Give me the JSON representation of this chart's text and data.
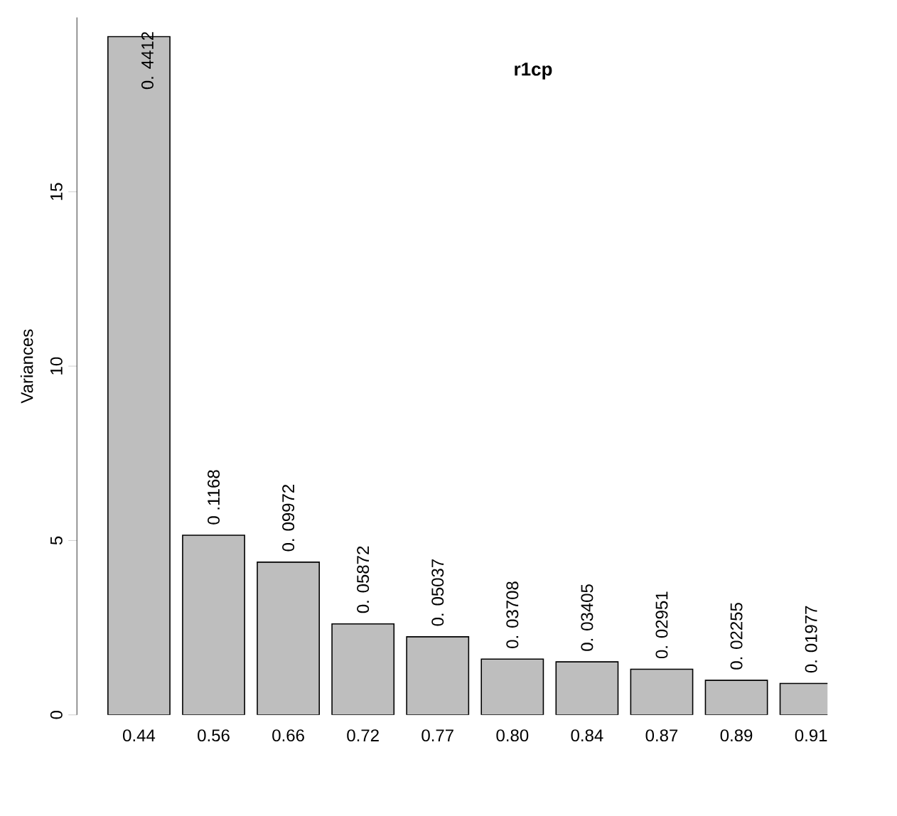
{
  "chart_data": {
    "type": "bar",
    "title": "r1cp",
    "ylabel": "Variances",
    "categories": [
      "0.44",
      "0.56",
      "0.66",
      "0.72",
      "0.77",
      "0.80",
      "0.84",
      "0.87",
      "0.89",
      "0.91"
    ],
    "values": [
      19.45,
      5.15,
      4.38,
      2.61,
      2.24,
      1.6,
      1.52,
      1.31,
      0.99,
      0.9
    ],
    "annotations": [
      {
        "text": "0. 4412",
        "x": "0.44",
        "y": 19.45
      },
      {
        "text": "0 .1168",
        "x": "0.56",
        "y": 5.15
      },
      {
        "text": "0. 09972",
        "x": "0.66",
        "y": 4.38
      },
      {
        "text": "0. 05872",
        "x": "0.72",
        "y": 2.61
      },
      {
        "text": "0. 05037",
        "x": "0.77",
        "y": 2.24
      },
      {
        "text": "0. 03708",
        "x": "0.80",
        "y": 1.6
      },
      {
        "text": "0. 03405",
        "x": "0.84",
        "y": 1.52
      },
      {
        "text": "0. 02951",
        "x": "0.87",
        "y": 1.31
      },
      {
        "text": "0. 02255",
        "x": "0.89",
        "y": 0.99
      },
      {
        "text": "0. 01977",
        "x": "0.91",
        "y": 0.9
      }
    ],
    "color": "#bebebe",
    "ylim": [
      0,
      20
    ],
    "yticks": [
      0,
      5,
      10,
      15
    ],
    "grid": false
  }
}
